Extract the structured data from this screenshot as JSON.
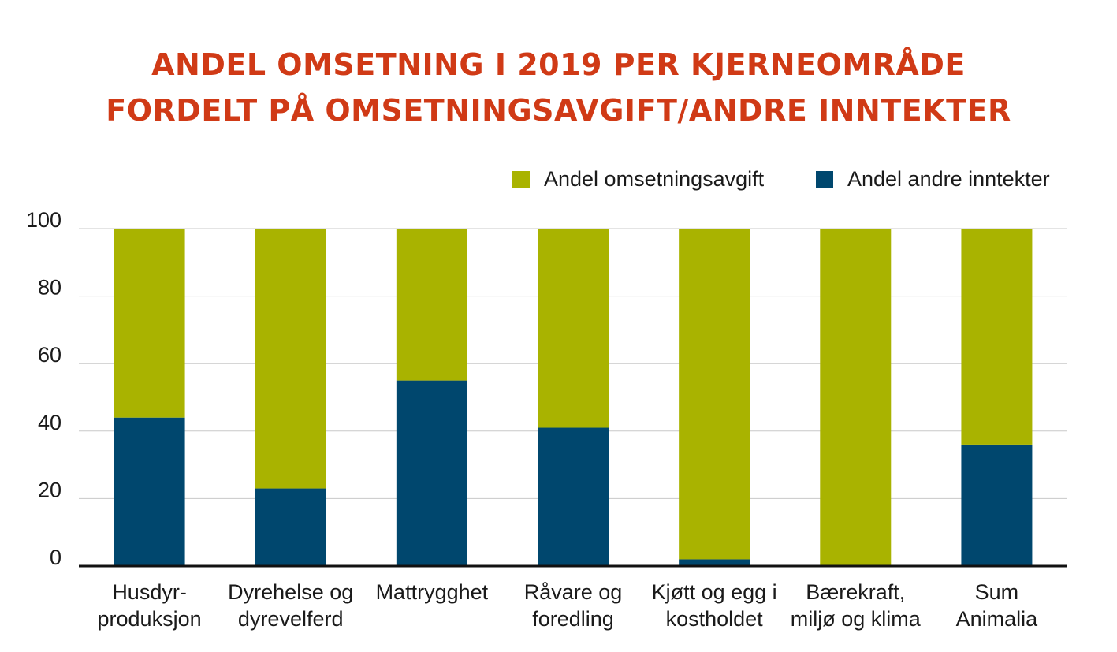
{
  "title_line1": "ANDEL OMSETNING I 2019 PER KJERNEOMRÅDE",
  "title_line2": "FORDELT PÅ OMSETNINGSAVGIFT/ANDRE INNTEKTER",
  "legend": [
    {
      "label": "Andel omsetningsavgift",
      "color": "#a9b300"
    },
    {
      "label": "Andel andre inntekter",
      "color": "#00476e"
    }
  ],
  "chart_data": {
    "type": "bar",
    "stacked": true,
    "categories": [
      [
        "Husdyr-",
        "produksjon"
      ],
      [
        "Dyrehelse og",
        "dyrevelferd"
      ],
      [
        "Mattrygghet"
      ],
      [
        "Råvare og",
        "foredling"
      ],
      [
        "Kjøtt og egg i",
        "kostholdet"
      ],
      [
        "Bærekraft,",
        "miljø og klima"
      ],
      [
        "Sum",
        "Animalia"
      ]
    ],
    "series": [
      {
        "name": "Andel andre inntekter",
        "color": "#00476e",
        "values": [
          44,
          23,
          55,
          41,
          2,
          0,
          36
        ]
      },
      {
        "name": "Andel omsetningsavgift",
        "color": "#a9b300",
        "values": [
          56,
          77,
          45,
          59,
          98,
          100,
          64
        ]
      }
    ],
    "ylim": [
      0,
      100
    ],
    "yticks": [
      0,
      20,
      40,
      60,
      80,
      100
    ],
    "grid": true,
    "legend_position": "top-right"
  }
}
